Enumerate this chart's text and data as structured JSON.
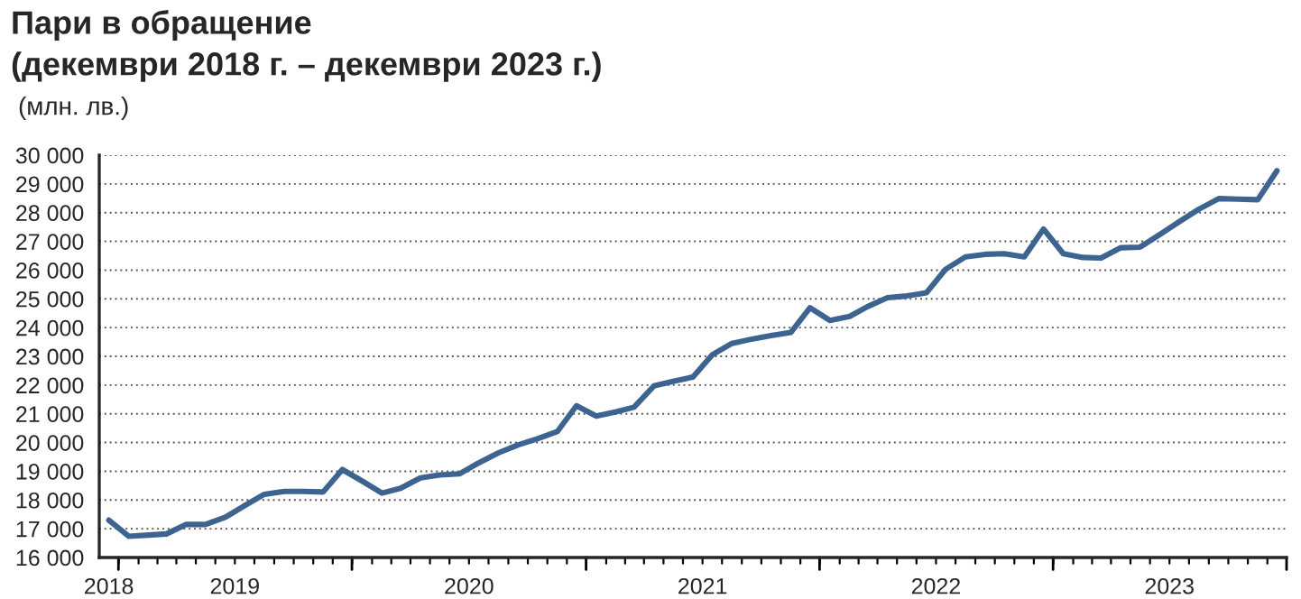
{
  "chart_data": {
    "type": "line",
    "title": "Пари в обращение",
    "subtitle": "(декември 2018 г. – декември 2023 г.)",
    "ylabel": "(млн. лв.)",
    "x": [
      "2018-12",
      "2019-01",
      "2019-02",
      "2019-03",
      "2019-04",
      "2019-05",
      "2019-06",
      "2019-07",
      "2019-08",
      "2019-09",
      "2019-10",
      "2019-11",
      "2019-12",
      "2020-01",
      "2020-02",
      "2020-03",
      "2020-04",
      "2020-05",
      "2020-06",
      "2020-07",
      "2020-08",
      "2020-09",
      "2020-10",
      "2020-11",
      "2020-12",
      "2021-01",
      "2021-02",
      "2021-03",
      "2021-04",
      "2021-05",
      "2021-06",
      "2021-07",
      "2021-08",
      "2021-09",
      "2021-10",
      "2021-11",
      "2021-12",
      "2022-01",
      "2022-02",
      "2022-03",
      "2022-04",
      "2022-05",
      "2022-06",
      "2022-07",
      "2022-08",
      "2022-09",
      "2022-10",
      "2022-11",
      "2022-12",
      "2023-01",
      "2023-02",
      "2023-03",
      "2023-04",
      "2023-05",
      "2023-06",
      "2023-07",
      "2023-08",
      "2023-09",
      "2023-10",
      "2023-11",
      "2023-12"
    ],
    "series": [
      {
        "color": "#3d6491",
        "values": [
          17300,
          16740,
          16780,
          16820,
          17150,
          17150,
          17400,
          17800,
          18200,
          18300,
          18300,
          18280,
          19060,
          18660,
          18240,
          18410,
          18770,
          18870,
          18910,
          19290,
          19640,
          19920,
          20130,
          20380,
          21280,
          20920,
          21070,
          21230,
          21970,
          22130,
          22280,
          23050,
          23450,
          23600,
          23720,
          23830,
          24690,
          24250,
          24390,
          24730,
          25040,
          25100,
          25210,
          26030,
          26460,
          26550,
          26570,
          26460,
          27430,
          26570,
          26440,
          26420,
          26780,
          26800,
          27240,
          27680,
          28120,
          28490,
          28470,
          28450,
          29460
        ]
      }
    ],
    "xlim": [
      "2018-11-16",
      "2023-12-16"
    ],
    "xticks": [
      {
        "value": "2018-12-01",
        "label": "2018"
      },
      {
        "value": "2018-12-16",
        "label": null
      },
      {
        "value": "2019-06-16",
        "label": "2019"
      },
      {
        "value": "2019-12-16",
        "label": null
      },
      {
        "value": "2020-06-16",
        "label": "2020"
      },
      {
        "value": "2020-12-16",
        "label": null
      },
      {
        "value": "2021-06-16",
        "label": "2021"
      },
      {
        "value": "2021-12-16",
        "label": null
      },
      {
        "value": "2022-06-16",
        "label": "2022"
      },
      {
        "value": "2022-12-16",
        "label": null
      },
      {
        "value": "2023-06-16",
        "label": "2023"
      },
      {
        "value": "2023-12-16",
        "label": null
      }
    ],
    "ylim": [
      16000,
      30000
    ],
    "yticks": [
      {
        "value": 16000,
        "label": "16 000"
      },
      {
        "value": 17000,
        "label": "17 000"
      },
      {
        "value": 18000,
        "label": "18 000"
      },
      {
        "value": 19000,
        "label": "19 000"
      },
      {
        "value": 20000,
        "label": "20 000"
      },
      {
        "value": 21000,
        "label": "21 000"
      },
      {
        "value": 22000,
        "label": "22 000"
      },
      {
        "value": 23000,
        "label": "23 000"
      },
      {
        "value": 24000,
        "label": "24 000"
      },
      {
        "value": 25000,
        "label": "25 000"
      },
      {
        "value": 26000,
        "label": "26 000"
      },
      {
        "value": 27000,
        "label": "27 000"
      },
      {
        "value": 28000,
        "label": "28 000"
      },
      {
        "value": 29000,
        "label": "29 000"
      },
      {
        "value": 30000,
        "label": "30 000"
      }
    ],
    "grid": "y",
    "line_style": "solid",
    "marker": "none"
  }
}
